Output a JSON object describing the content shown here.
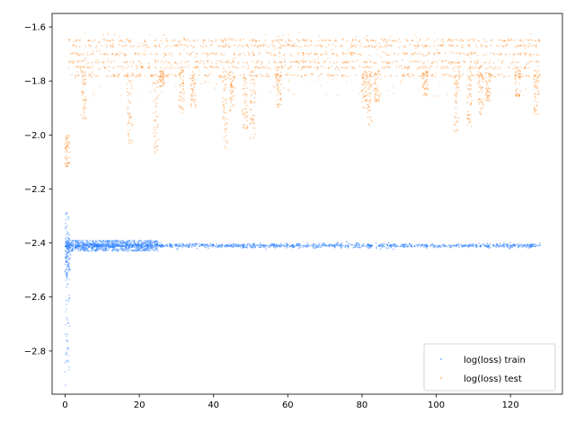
{
  "chart_data": {
    "type": "scatter",
    "title": "",
    "xlabel": "",
    "ylabel": "",
    "xlim": [
      -3.5,
      134
    ],
    "ylim": [
      -2.96,
      -1.55
    ],
    "xticks": [
      0,
      20,
      40,
      60,
      80,
      100,
      120
    ],
    "xtick_labels": [
      "0",
      "20",
      "40",
      "60",
      "80",
      "100",
      "120"
    ],
    "yticks": [
      -2.8,
      -2.6,
      -2.4,
      -2.2,
      -2.0,
      -1.8,
      -1.6
    ],
    "ytick_labels": [
      "−2.8",
      "−2.6",
      "−2.4",
      "−2.2",
      "−2.0",
      "−1.8",
      "−1.6"
    ],
    "grid": false,
    "legend": {
      "placement": "bottom-right"
    },
    "series": [
      {
        "name": "log(loss) train",
        "color": "#1f77ff",
        "x_range": [
          0,
          128
        ],
        "converged_value": -2.41,
        "initial_min": -2.93,
        "initial_max": -2.28,
        "early_band": [
          -2.43,
          -2.39
        ],
        "early_band_until": 25
      },
      {
        "name": "log(loss) test",
        "color": "#ff7f0e",
        "x_range": [
          0,
          128
        ],
        "levels": [
          -1.65,
          -1.67,
          -1.7,
          -1.73,
          -1.75,
          -1.78
        ],
        "initial_cluster": [
          -2.12,
          -2.0
        ],
        "dips": [
          {
            "x": 5,
            "low": -1.95
          },
          {
            "x": 17.5,
            "low": -2.03
          },
          {
            "x": 24.5,
            "low": -2.08
          },
          {
            "x": 26,
            "low": -1.82
          },
          {
            "x": 31.5,
            "low": -1.92
          },
          {
            "x": 34.5,
            "low": -1.9
          },
          {
            "x": 43,
            "low": -2.05
          },
          {
            "x": 45,
            "low": -1.92
          },
          {
            "x": 48.5,
            "low": -1.98
          },
          {
            "x": 50.5,
            "low": -2.02
          },
          {
            "x": 57.5,
            "low": -1.9
          },
          {
            "x": 80.5,
            "low": -1.9
          },
          {
            "x": 82,
            "low": -1.97
          },
          {
            "x": 84,
            "low": -1.88
          },
          {
            "x": 97,
            "low": -1.86
          },
          {
            "x": 105.5,
            "low": -2.0
          },
          {
            "x": 109,
            "low": -1.97
          },
          {
            "x": 112,
            "low": -1.93
          },
          {
            "x": 114,
            "low": -1.88
          },
          {
            "x": 122,
            "low": -1.86
          },
          {
            "x": 127,
            "low": -1.93
          }
        ]
      }
    ]
  }
}
